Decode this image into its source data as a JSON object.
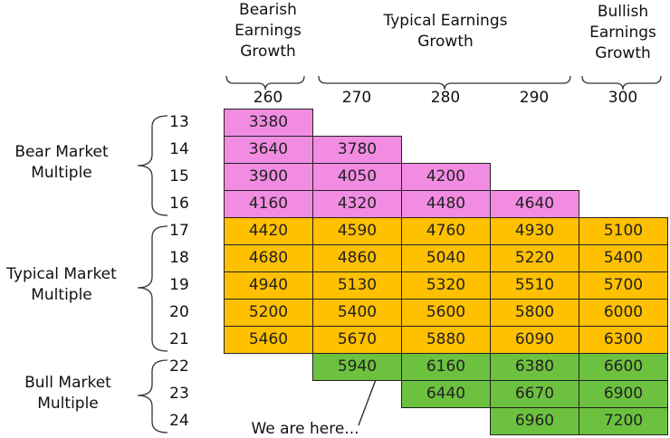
{
  "column_groups": [
    {
      "label": "Bearish Earnings Growth",
      "columns": [
        0
      ]
    },
    {
      "label": "Typical Earnings Growth",
      "columns": [
        1,
        2,
        3
      ]
    },
    {
      "label": "Bullish Earnings Growth",
      "columns": [
        4
      ]
    }
  ],
  "columns": [
    "260",
    "270",
    "280",
    "290",
    "300"
  ],
  "row_groups": [
    {
      "label": "Bear Market Multiple",
      "color": "#f28ce3",
      "rows": [
        {
          "label": "13",
          "cells": [
            3380,
            null,
            null,
            null,
            null
          ]
        },
        {
          "label": "14",
          "cells": [
            3640,
            3780,
            null,
            null,
            null
          ]
        },
        {
          "label": "15",
          "cells": [
            3900,
            4050,
            4200,
            null,
            null
          ]
        },
        {
          "label": "16",
          "cells": [
            4160,
            4320,
            4480,
            4640,
            null
          ]
        }
      ]
    },
    {
      "label": "Typical Market Multiple",
      "color": "#ffc000",
      "rows": [
        {
          "label": "17",
          "cells": [
            4420,
            4590,
            4760,
            4930,
            5100
          ]
        },
        {
          "label": "18",
          "cells": [
            4680,
            4860,
            5040,
            5220,
            5400
          ]
        },
        {
          "label": "19",
          "cells": [
            4940,
            5130,
            5320,
            5510,
            5700
          ]
        },
        {
          "label": "20",
          "cells": [
            5200,
            5400,
            5600,
            5800,
            6000
          ]
        },
        {
          "label": "21",
          "cells": [
            5460,
            5670,
            5880,
            6090,
            6300
          ]
        }
      ]
    },
    {
      "label": "Bull Market Multiple",
      "color": "#6cc13f",
      "rows": [
        {
          "label": "22",
          "cells": [
            null,
            5940,
            6160,
            6380,
            6600
          ]
        },
        {
          "label": "23",
          "cells": [
            null,
            null,
            6440,
            6670,
            6900
          ]
        },
        {
          "label": "24",
          "cells": [
            null,
            null,
            null,
            6960,
            7200
          ]
        }
      ]
    }
  ],
  "annotation": "We are here..."
}
